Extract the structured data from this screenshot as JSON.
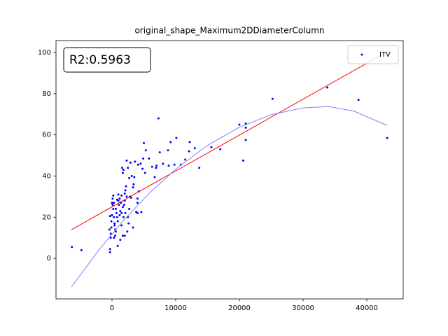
{
  "chart_data": {
    "type": "scatter",
    "title": "original_shape_Maximum2DDiameterColumn",
    "annotation": "R2:0.5963",
    "legend": "upper right",
    "xlim": [
      -8791,
      45714
    ],
    "ylim": [
      -19.7,
      105.8
    ],
    "xticks": [
      0,
      10000,
      20000,
      30000,
      40000
    ],
    "yticks": [
      0,
      20,
      40,
      60,
      80,
      100
    ],
    "series": [
      {
        "name": "ITV",
        "type": "scatter",
        "color": "#0000ff",
        "x": [
          -6300,
          -4800,
          21000,
          20000,
          21000,
          21000,
          20600,
          25200,
          33800,
          38700,
          43200,
          17000,
          15600,
          13700,
          13000,
          12200,
          12100,
          11500,
          10800,
          10100,
          9800,
          9200,
          8800,
          8900,
          8000,
          7300,
          7500,
          7000,
          6900,
          6700,
          6300,
          5800,
          5300,
          5000,
          4900,
          5200,
          4800,
          4500,
          4100,
          4600,
          4200,
          4000,
          4000,
          3600,
          3500,
          3400,
          3300,
          3100,
          2900,
          2700,
          2800,
          2500,
          2300,
          2200,
          2100,
          2000,
          2000,
          1900,
          2300,
          1800,
          1600,
          1700,
          1500,
          1400,
          1300,
          1200,
          1100,
          1000,
          900,
          800,
          700,
          600,
          500,
          400,
          300,
          200,
          100,
          0,
          -100,
          -200,
          -300,
          -300,
          -200,
          -100,
          0,
          100,
          200,
          300,
          400,
          500,
          1000,
          1200,
          1500,
          1700,
          1800,
          2100,
          2500,
          2700,
          3000,
          2000,
          1300,
          900,
          1500,
          1700,
          2400,
          3300,
          4000,
          2600,
          3800,
          -400,
          -300,
          300,
          600,
          800
        ],
        "values": [
          5.5,
          4,
          65.5,
          65,
          63.5,
          57.5,
          47.5,
          77.5,
          83,
          77,
          58.5,
          53,
          54,
          44,
          53.5,
          56.5,
          52,
          48,
          45.5,
          58.5,
          45.5,
          56.5,
          52.5,
          45,
          46,
          68,
          51.5,
          45,
          44,
          39.5,
          44.5,
          48.5,
          52.5,
          56,
          48.5,
          41.5,
          43.5,
          46,
          45.5,
          22.5,
          32.5,
          22,
          27,
          47,
          39.5,
          36,
          34.5,
          40,
          46.5,
          39,
          30,
          44,
          47.5,
          35,
          33,
          31.5,
          28,
          26,
          30,
          43,
          44,
          41.5,
          30.5,
          27,
          23,
          21,
          26,
          28,
          18,
          20,
          22,
          13,
          11,
          17,
          20,
          24,
          26,
          27,
          15,
          10,
          4.5,
          3,
          12,
          18,
          21,
          29,
          30.5,
          27,
          16,
          14,
          31,
          29,
          22,
          25,
          20,
          22,
          20,
          24,
          29.5,
          11,
          9,
          6,
          16,
          11,
          13,
          15,
          29,
          17,
          22.5,
          14,
          20.5,
          10,
          24,
          28.5
        ]
      },
      {
        "type": "line",
        "color": "#ff0000",
        "x": [
          -6374,
          42418
        ],
        "values": [
          13.9,
          99
        ]
      },
      {
        "type": "line",
        "color": "#7f7fff",
        "x": [
          -6374,
          -2000,
          2000,
          6000,
          10000,
          15000,
          20000,
          25000,
          30000,
          34000,
          38000,
          43187
        ],
        "values": [
          -13.9,
          4.3,
          19.1,
          32.1,
          43.3,
          54.9,
          63.7,
          69.8,
          73.1,
          73.8,
          71.5,
          64.6
        ]
      }
    ]
  }
}
